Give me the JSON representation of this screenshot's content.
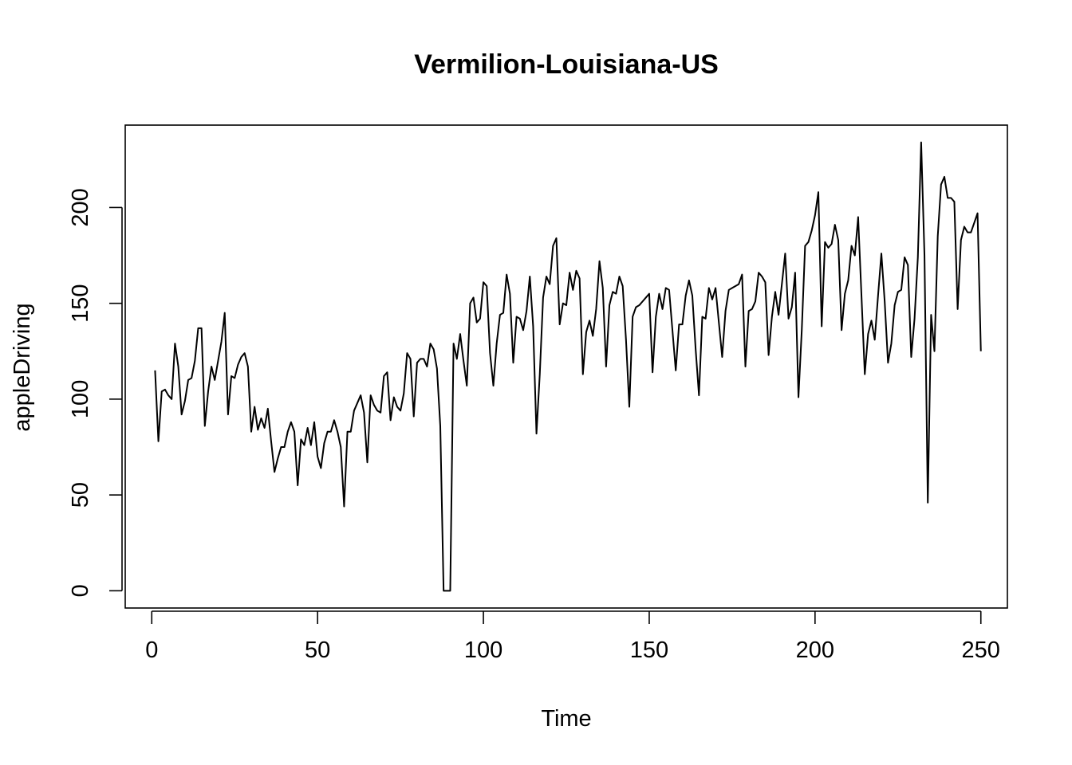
{
  "chart_data": {
    "type": "line",
    "title": "Vermilion-Louisiana-US",
    "xlabel": "Time",
    "ylabel": "appleDriving",
    "xlim": [
      -8,
      258
    ],
    "ylim": [
      -9,
      243
    ],
    "x_ticks": [
      0,
      50,
      100,
      150,
      200,
      250
    ],
    "y_ticks": [
      0,
      50,
      100,
      150,
      200
    ],
    "grid": false,
    "legend": "none",
    "line_color": "#000000",
    "series": [
      {
        "x_start": 1,
        "values": [
          115,
          78,
          104,
          105,
          102,
          100,
          129,
          117,
          92,
          99,
          110,
          111,
          120,
          137,
          137,
          86,
          104,
          117,
          110,
          120,
          130,
          145,
          92,
          112,
          111,
          118,
          122,
          124,
          117,
          83,
          96,
          84,
          90,
          85,
          95,
          78,
          62,
          69,
          75,
          75,
          83,
          88,
          83,
          55,
          79,
          76,
          85,
          76,
          88,
          70,
          64,
          77,
          83,
          83,
          89,
          83,
          75,
          44,
          83,
          83,
          94,
          98,
          102,
          93,
          67,
          102,
          97,
          94,
          93,
          112,
          114,
          89,
          101,
          96,
          94,
          103,
          124,
          121,
          91,
          119,
          121,
          121,
          117,
          129,
          126,
          116,
          86,
          0,
          0,
          0,
          129,
          121,
          134,
          120,
          107,
          150,
          153,
          140,
          142,
          161,
          159,
          124,
          107,
          129,
          144,
          145,
          165,
          155,
          119,
          143,
          142,
          136,
          146,
          164,
          138,
          82,
          113,
          153,
          164,
          160,
          180,
          184,
          139,
          150,
          149,
          166,
          157,
          167,
          163,
          113,
          135,
          141,
          133,
          147,
          172,
          158,
          117,
          149,
          156,
          155,
          164,
          159,
          131,
          96,
          143,
          148,
          149,
          151,
          153,
          155,
          114,
          143,
          155,
          147,
          158,
          157,
          136,
          115,
          139,
          139,
          154,
          162,
          154,
          126,
          102,
          143,
          142,
          158,
          152,
          158,
          140,
          122,
          146,
          157,
          158,
          159,
          160,
          165,
          117,
          146,
          147,
          151,
          166,
          164,
          161,
          123,
          143,
          156,
          144,
          160,
          176,
          142,
          148,
          166,
          101,
          136,
          180,
          182,
          188,
          196,
          208,
          138,
          182,
          179,
          181,
          191,
          183,
          136,
          155,
          162,
          180,
          175,
          195,
          154,
          113,
          134,
          141,
          131,
          154,
          176,
          151,
          119,
          129,
          149,
          156,
          157,
          174,
          170,
          122,
          142,
          174,
          234,
          175,
          46,
          144,
          125,
          185,
          212,
          216,
          205,
          205,
          203,
          147,
          183,
          190,
          187,
          187,
          192,
          197,
          125
        ]
      }
    ]
  }
}
